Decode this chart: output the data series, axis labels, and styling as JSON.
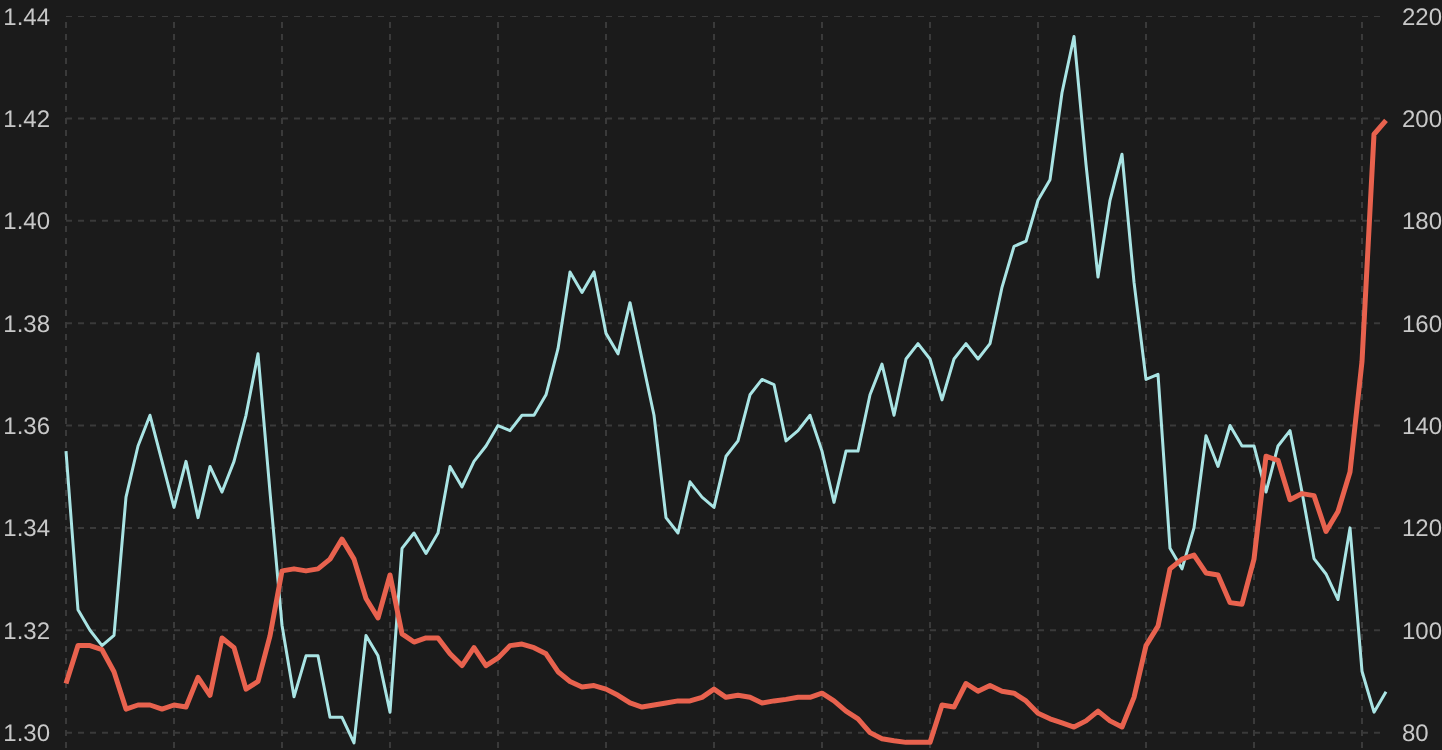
{
  "chart_data": {
    "type": "line",
    "categories": [
      null,
      null,
      null,
      null,
      null,
      null,
      null,
      null,
      null,
      null,
      null,
      null,
      null,
      null,
      null,
      null,
      null,
      null,
      null,
      null,
      null,
      null,
      null,
      null,
      null,
      null,
      null,
      null,
      null,
      null,
      null,
      null,
      null,
      null,
      null,
      null,
      null,
      null,
      null,
      null,
      null,
      null,
      null,
      null,
      null,
      null,
      null,
      null,
      null,
      null,
      null,
      null,
      null,
      null,
      null,
      null,
      null,
      null,
      null,
      null,
      null,
      null,
      null,
      null,
      null,
      null,
      null,
      null,
      null,
      null,
      null,
      null,
      null,
      null,
      null,
      null,
      null,
      null,
      null,
      null,
      null,
      null,
      null,
      null,
      null,
      null,
      null,
      null,
      null,
      null,
      null,
      null,
      null,
      null,
      null,
      null,
      null,
      null,
      null,
      null,
      null,
      null,
      null,
      null,
      null,
      null,
      null,
      null,
      null,
      null,
      null
    ],
    "series": [
      {
        "color": "#a9e4e4",
        "axis": "y",
        "values": [
          1.355,
          1.324,
          1.32,
          1.317,
          1.319,
          1.346,
          1.356,
          1.362,
          1.353,
          1.344,
          1.353,
          1.342,
          1.352,
          1.347,
          1.353,
          1.362,
          1.374,
          1.347,
          1.321,
          1.307,
          1.315,
          1.315,
          1.303,
          1.303,
          1.298,
          1.319,
          1.315,
          1.304,
          1.336,
          1.339,
          1.335,
          1.339,
          1.352,
          1.348,
          1.353,
          1.356,
          1.36,
          1.359,
          1.362,
          1.362,
          1.366,
          1.375,
          1.39,
          1.386,
          1.39,
          1.378,
          1.374,
          1.384,
          1.373,
          1.362,
          1.342,
          1.339,
          1.349,
          1.346,
          1.344,
          1.354,
          1.357,
          1.366,
          1.369,
          1.368,
          1.357,
          1.359,
          1.362,
          1.355,
          1.345,
          1.355,
          1.355,
          1.366,
          1.372,
          1.362,
          1.373,
          1.376,
          1.373,
          1.365,
          1.373,
          1.376,
          1.373,
          1.376,
          1.387,
          1.395,
          1.396,
          1.404,
          1.408,
          1.425,
          1.436,
          1.411,
          1.389,
          1.404,
          1.413,
          1.388,
          1.369,
          1.37,
          1.336,
          1.332,
          1.34,
          1.358,
          1.352,
          1.36,
          1.356,
          1.356,
          1.347,
          1.356,
          1.359,
          1.347,
          1.334,
          1.331,
          1.326,
          1.34,
          1.312,
          1.304,
          1.308
        ]
      },
      {
        "color": "#e8624e",
        "axis": "y2",
        "values": [
          89.6,
          97.0,
          97.0,
          96.2,
          91.9,
          84.6,
          85.4,
          85.4,
          84.6,
          85.4,
          85.0,
          90.8,
          87.3,
          98.5,
          96.6,
          88.5,
          90.0,
          98.9,
          111.6,
          112.0,
          111.6,
          112.0,
          113.9,
          117.8,
          113.9,
          106.2,
          102.4,
          110.8,
          99.3,
          97.7,
          98.5,
          98.5,
          95.4,
          93.1,
          96.6,
          93.1,
          94.6,
          97.0,
          97.3,
          96.6,
          95.4,
          91.9,
          90.0,
          88.9,
          89.2,
          88.5,
          87.3,
          85.8,
          85.0,
          85.4,
          85.8,
          86.2,
          86.2,
          86.9,
          88.5,
          86.9,
          87.3,
          86.9,
          85.8,
          86.2,
          86.5,
          86.9,
          86.9,
          87.7,
          86.2,
          84.2,
          82.7,
          80.0,
          78.8,
          78.4,
          78.1,
          78.1,
          78.1,
          85.4,
          85.0,
          89.6,
          88.1,
          89.2,
          88.1,
          87.7,
          86.2,
          83.8,
          82.7,
          81.9,
          81.1,
          82.3,
          84.2,
          82.3,
          81.1,
          86.9,
          97.0,
          100.8,
          112.0,
          113.9,
          114.7,
          111.2,
          110.8,
          105.4,
          105.1,
          113.9,
          134.0,
          133.2,
          125.5,
          126.7,
          126.3,
          119.3,
          123.2,
          130.9,
          152.5,
          196.9,
          199.6
        ]
      }
    ],
    "ylim": [
      1.297,
      1.44
    ],
    "yticks": [
      {
        "value": 1.3,
        "label": "1.30"
      },
      1.32,
      1.34,
      1.36,
      1.38,
      {
        "value": 1.4,
        "label": "1.40"
      },
      1.42,
      1.44
    ],
    "y2lim": [
      77,
      220
    ],
    "y2ticks": [
      80,
      100,
      120,
      140,
      160,
      180,
      200,
      220
    ],
    "grid": true,
    "legend": false
  }
}
